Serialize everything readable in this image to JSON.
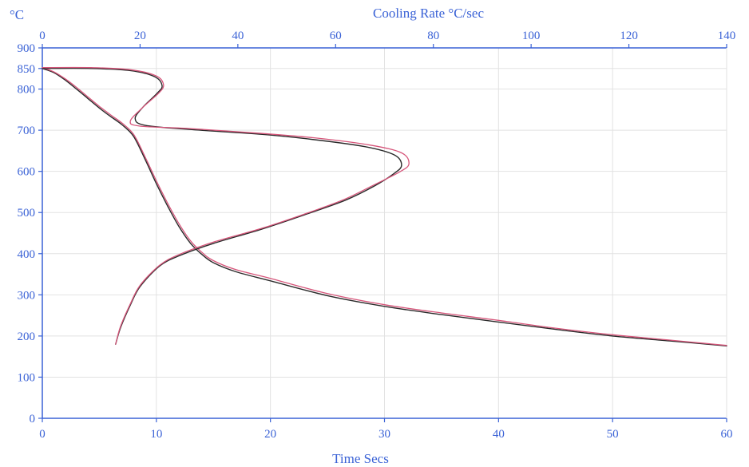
{
  "chart_data": {
    "type": "line",
    "y_unit_label": "°C",
    "xlabel": "Time  Secs",
    "x2label": "Cooling Rate  °C/sec",
    "xlim": [
      0,
      60
    ],
    "x2lim": [
      0,
      140
    ],
    "ylim": [
      0,
      900
    ],
    "x_ticks": [
      0,
      10,
      20,
      30,
      40,
      50,
      60
    ],
    "x2_ticks": [
      0,
      20,
      40,
      60,
      80,
      100,
      120,
      140
    ],
    "y_ticks": [
      0,
      100,
      200,
      300,
      400,
      500,
      600,
      700,
      800,
      850,
      900
    ],
    "grid": true,
    "colors": {
      "axis": "#3a62d6",
      "grid": "#e2e2e2",
      "curve_dark": "#2a2a2a",
      "curve_red": "#d6557a"
    },
    "series": [
      {
        "axis": "bottom",
        "color": "#2a2a2a",
        "points": [
          [
            0,
            850
          ],
          [
            1,
            840
          ],
          [
            2,
            822
          ],
          [
            3,
            800
          ],
          [
            4,
            777
          ],
          [
            5,
            754
          ],
          [
            6,
            733
          ],
          [
            7,
            713
          ],
          [
            8,
            685
          ],
          [
            9,
            630
          ],
          [
            10,
            570
          ],
          [
            11,
            515
          ],
          [
            12,
            465
          ],
          [
            13,
            425
          ],
          [
            14,
            398
          ],
          [
            15,
            378
          ],
          [
            17,
            356
          ],
          [
            20,
            334
          ],
          [
            25,
            298
          ],
          [
            30,
            272
          ],
          [
            35,
            252
          ],
          [
            40,
            234
          ],
          [
            45,
            216
          ],
          [
            50,
            200
          ],
          [
            55,
            188
          ],
          [
            60,
            176
          ]
        ]
      },
      {
        "axis": "bottom",
        "color": "#d6557a",
        "points": [
          [
            0,
            852
          ],
          [
            1,
            842
          ],
          [
            2,
            825
          ],
          [
            3,
            804
          ],
          [
            4,
            781
          ],
          [
            5,
            758
          ],
          [
            6,
            737
          ],
          [
            7,
            717
          ],
          [
            8,
            690
          ],
          [
            9,
            636
          ],
          [
            10,
            577
          ],
          [
            11,
            522
          ],
          [
            12,
            472
          ],
          [
            13,
            431
          ],
          [
            14,
            403
          ],
          [
            15,
            383
          ],
          [
            17,
            361
          ],
          [
            20,
            340
          ],
          [
            25,
            303
          ],
          [
            30,
            276
          ],
          [
            35,
            256
          ],
          [
            40,
            238
          ],
          [
            45,
            219
          ],
          [
            50,
            203
          ],
          [
            55,
            190
          ],
          [
            60,
            177
          ]
        ]
      },
      {
        "axis": "top",
        "color": "#2a2a2a",
        "points": [
          [
            15,
            180
          ],
          [
            16,
            220
          ],
          [
            18,
            275
          ],
          [
            20,
            320
          ],
          [
            24,
            370
          ],
          [
            28,
            395
          ],
          [
            35,
            425
          ],
          [
            45,
            460
          ],
          [
            55,
            500
          ],
          [
            62,
            530
          ],
          [
            68,
            565
          ],
          [
            72,
            595
          ],
          [
            73.5,
            615
          ],
          [
            72,
            640
          ],
          [
            66,
            660
          ],
          [
            55,
            678
          ],
          [
            45,
            690
          ],
          [
            30,
            702
          ],
          [
            21,
            712
          ],
          [
            19,
            728
          ],
          [
            20.5,
            755
          ],
          [
            23.5,
            790
          ],
          [
            24.5,
            808
          ],
          [
            23,
            830
          ],
          [
            18,
            845
          ],
          [
            10,
            850
          ],
          [
            0,
            850
          ]
        ]
      },
      {
        "axis": "top",
        "color": "#d6557a",
        "points": [
          [
            15,
            180
          ],
          [
            16,
            223
          ],
          [
            18,
            278
          ],
          [
            20,
            323
          ],
          [
            24,
            372
          ],
          [
            28,
            398
          ],
          [
            35,
            428
          ],
          [
            45,
            462
          ],
          [
            55,
            502
          ],
          [
            62,
            533
          ],
          [
            68,
            568
          ],
          [
            73,
            598
          ],
          [
            75,
            618
          ],
          [
            73.5,
            645
          ],
          [
            67,
            664
          ],
          [
            56,
            681
          ],
          [
            45,
            692
          ],
          [
            30,
            704
          ],
          [
            20,
            710
          ],
          [
            18,
            722
          ],
          [
            20.5,
            755
          ],
          [
            23.8,
            790
          ],
          [
            24.8,
            810
          ],
          [
            23.3,
            832
          ],
          [
            18,
            847
          ],
          [
            10,
            852
          ],
          [
            0,
            852
          ]
        ]
      }
    ]
  }
}
